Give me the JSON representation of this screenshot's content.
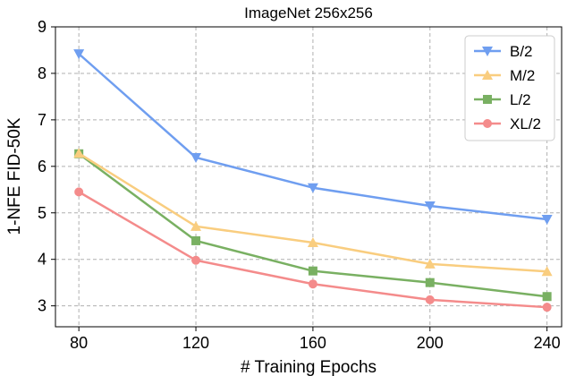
{
  "chart_data": {
    "type": "line",
    "title": "ImageNet 256x256",
    "xlabel": "# Training Epochs",
    "ylabel": "1-NFE FID-50K",
    "x": [
      80,
      120,
      160,
      200,
      240
    ],
    "xticks": [
      "80",
      "120",
      "160",
      "200",
      "240"
    ],
    "yticks": [
      "3",
      "4",
      "5",
      "6",
      "7",
      "8",
      "9"
    ],
    "xlim": [
      72,
      245
    ],
    "ylim": [
      2.55,
      9.0
    ],
    "grid": true,
    "legend_position": "top-right",
    "series": [
      {
        "name": "B/2",
        "marker": "triangle-down",
        "color": "#6f9ef0",
        "values": [
          8.42,
          6.19,
          5.54,
          5.15,
          4.86
        ]
      },
      {
        "name": "M/2",
        "marker": "triangle-up",
        "color": "#f9cd7f",
        "values": [
          6.28,
          4.71,
          4.36,
          3.9,
          3.74
        ]
      },
      {
        "name": "L/2",
        "marker": "square",
        "color": "#79b062",
        "values": [
          6.27,
          4.4,
          3.75,
          3.5,
          3.2
        ]
      },
      {
        "name": "XL/2",
        "marker": "circle",
        "color": "#f48b8b",
        "values": [
          5.45,
          3.98,
          3.47,
          3.13,
          2.97
        ]
      }
    ]
  }
}
